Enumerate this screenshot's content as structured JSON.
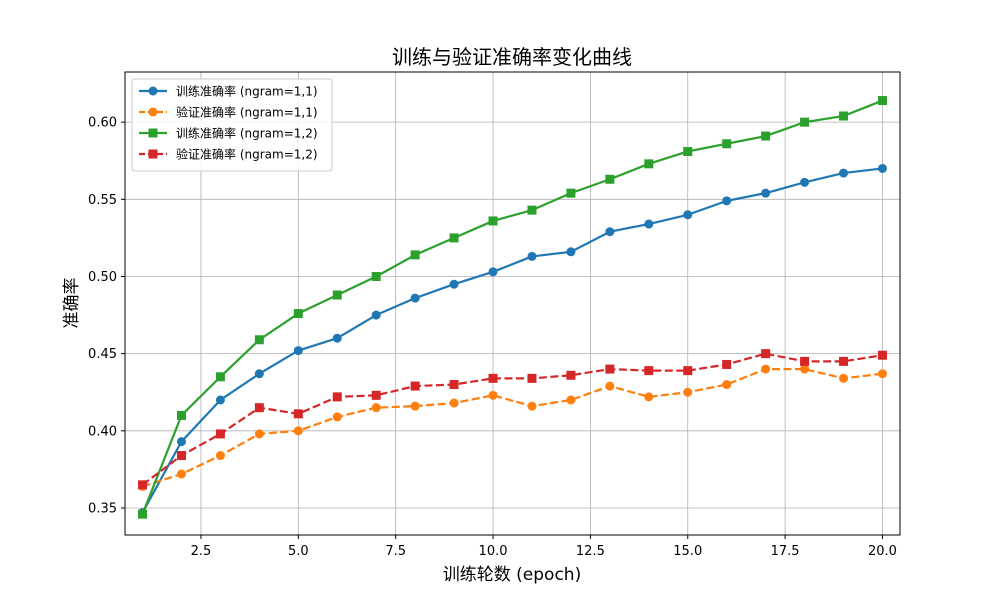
{
  "chart_data": {
    "type": "line",
    "title": "训练与验证准确率变化曲线",
    "xlabel": "训练轮数 (epoch)",
    "ylabel": "准确率",
    "xlim": [
      0.55,
      20.45
    ],
    "ylim": [
      0.3325,
      0.6325
    ],
    "xticks": [
      2.5,
      5.0,
      7.5,
      10.0,
      12.5,
      15.0,
      17.5,
      20.0
    ],
    "xtick_labels": [
      "2.5",
      "5.0",
      "7.5",
      "10.0",
      "12.5",
      "15.0",
      "17.5",
      "20.0"
    ],
    "yticks": [
      0.35,
      0.4,
      0.45,
      0.5,
      0.55,
      0.6
    ],
    "ytick_labels": [
      "0.35",
      "0.40",
      "0.45",
      "0.50",
      "0.55",
      "0.60"
    ],
    "grid": true,
    "legend_position": "top-left",
    "x": [
      1,
      2,
      3,
      4,
      5,
      6,
      7,
      8,
      9,
      10,
      11,
      12,
      13,
      14,
      15,
      16,
      17,
      18,
      19,
      20
    ],
    "series": [
      {
        "name": "训练准确率 (ngram=1,1)",
        "color": "#1f77b4",
        "linestyle": "solid",
        "marker": "circle",
        "values": [
          0.347,
          0.393,
          0.42,
          0.437,
          0.452,
          0.46,
          0.475,
          0.486,
          0.495,
          0.503,
          0.513,
          0.516,
          0.529,
          0.534,
          0.54,
          0.549,
          0.554,
          0.561,
          0.567,
          0.57
        ]
      },
      {
        "name": "验证准确率 (ngram=1,1)",
        "color": "#ff7f0e",
        "linestyle": "dashed",
        "marker": "circle",
        "values": [
          0.364,
          0.372,
          0.384,
          0.398,
          0.4,
          0.409,
          0.415,
          0.416,
          0.418,
          0.423,
          0.416,
          0.42,
          0.429,
          0.422,
          0.425,
          0.43,
          0.44,
          0.44,
          0.434,
          0.437
        ]
      },
      {
        "name": "训练准确率 (ngram=1,2)",
        "color": "#2ca02c",
        "linestyle": "solid",
        "marker": "square",
        "values": [
          0.346,
          0.41,
          0.435,
          0.459,
          0.476,
          0.488,
          0.5,
          0.514,
          0.525,
          0.536,
          0.543,
          0.554,
          0.563,
          0.573,
          0.581,
          0.586,
          0.591,
          0.6,
          0.604,
          0.614
        ]
      },
      {
        "name": "验证准确率 (ngram=1,2)",
        "color": "#d62728",
        "linestyle": "dashed",
        "marker": "square",
        "values": [
          0.365,
          0.384,
          0.398,
          0.415,
          0.411,
          0.422,
          0.423,
          0.429,
          0.43,
          0.434,
          0.434,
          0.436,
          0.44,
          0.439,
          0.439,
          0.443,
          0.45,
          0.445,
          0.445,
          0.449
        ]
      }
    ]
  }
}
